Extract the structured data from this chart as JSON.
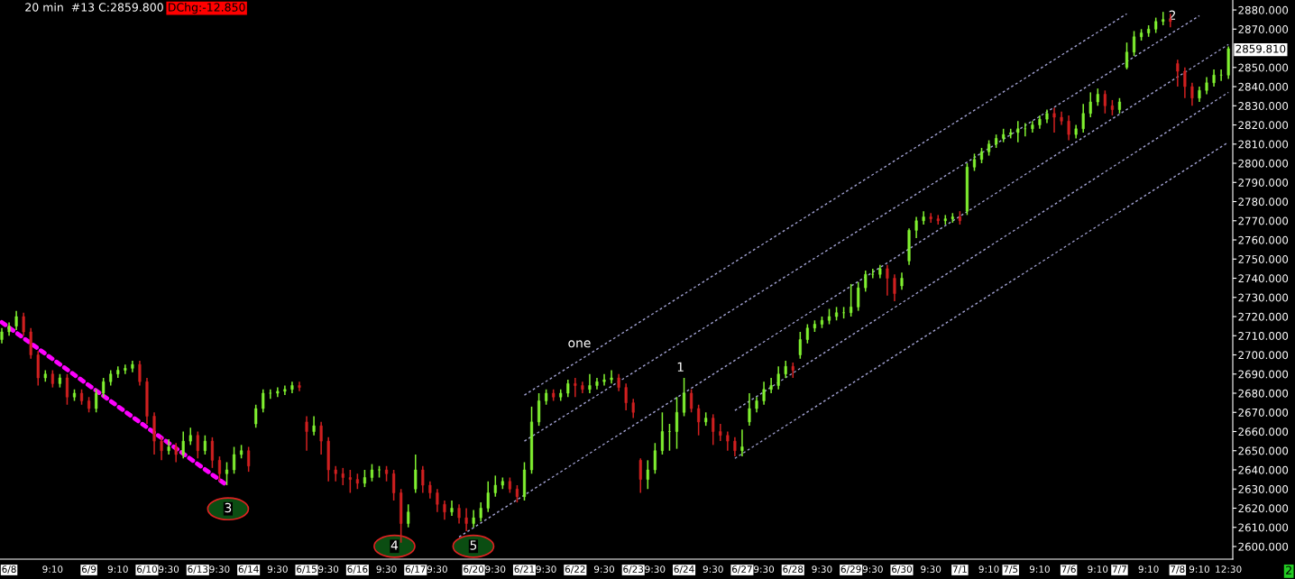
{
  "chart_data": {
    "type": "candlestick",
    "title": "20 min  #13 C:2859.800",
    "subtitle": "DChg:-12.850",
    "categories": [
      null,
      "6/8",
      null,
      null,
      null,
      null,
      null,
      "9:10",
      null,
      null,
      null,
      null,
      "6/9",
      null,
      null,
      null,
      "9:10",
      null,
      null,
      null,
      "6/10",
      null,
      null,
      "9:30",
      null,
      null,
      null,
      "6/13",
      null,
      null,
      "9:30",
      null,
      null,
      null,
      "6/14",
      null,
      null,
      null,
      "9:30",
      null,
      null,
      null,
      "6/15",
      null,
      null,
      "9:30",
      null,
      null,
      null,
      "6/16",
      null,
      null,
      null,
      "9:30",
      null,
      null,
      null,
      "6/17",
      null,
      null,
      "9:30",
      null,
      null,
      null,
      null,
      "6/20",
      null,
      null,
      "9:30",
      null,
      null,
      null,
      "6/21",
      null,
      null,
      "9:30",
      null,
      null,
      null,
      "6/22",
      null,
      null,
      null,
      "9:30",
      null,
      null,
      null,
      "6/23",
      null,
      null,
      "9:30",
      null,
      null,
      null,
      "6/24",
      null,
      null,
      null,
      "9:30",
      null,
      null,
      null,
      "6/27",
      null,
      null,
      "9:30",
      null,
      null,
      null,
      "6/28",
      null,
      null,
      null,
      "9:30",
      null,
      null,
      null,
      "6/29",
      null,
      null,
      "9:30",
      null,
      null,
      null,
      "6/30",
      null,
      null,
      null,
      "9:30",
      null,
      null,
      null,
      "7/1",
      null,
      null,
      null,
      "9:10",
      null,
      null,
      "7/5",
      null,
      null,
      null,
      "9:10",
      null,
      null,
      null,
      "7/6",
      null,
      null,
      null,
      "9:10",
      null,
      null,
      "7/7",
      null,
      null,
      null,
      "9:10",
      null,
      null,
      null,
      "7/8",
      null,
      null,
      "9:10",
      null,
      null,
      null,
      "12:30"
    ],
    "ohlc": [
      [
        2708,
        2714,
        2706,
        2712
      ],
      [
        2712,
        2717,
        2710,
        2715
      ],
      [
        2715,
        2723,
        2713,
        2720
      ],
      [
        2720,
        2722,
        2710,
        2712
      ],
      [
        2712,
        2714,
        2698,
        2700
      ],
      [
        2700,
        2702,
        2684,
        2688
      ],
      [
        2688,
        2692,
        2686,
        2690
      ],
      [
        2690,
        2692,
        2683,
        2685
      ],
      [
        2685,
        2690,
        2683,
        2688
      ],
      [
        2688,
        2690,
        2674,
        2678
      ],
      [
        2678,
        2682,
        2676,
        2680
      ],
      [
        2680,
        2682,
        2674,
        2676
      ],
      [
        2676,
        2678,
        2670,
        2672
      ],
      [
        2672,
        2682,
        2670,
        2680
      ],
      [
        2680,
        2688,
        2678,
        2686
      ],
      [
        2686,
        2692,
        2684,
        2690
      ],
      [
        2690,
        2694,
        2688,
        2692
      ],
      [
        2692,
        2695,
        2690,
        2693
      ],
      [
        2693,
        2697,
        2691,
        2695
      ],
      [
        2695,
        2697,
        2684,
        2686
      ],
      [
        2686,
        2688,
        2664,
        2668
      ],
      [
        2668,
        2670,
        2648,
        2655
      ],
      [
        2655,
        2657,
        2645,
        2650
      ],
      [
        2650,
        2656,
        2648,
        2652
      ],
      [
        2652,
        2654,
        2644,
        2648
      ],
      [
        2648,
        2660,
        2646,
        2655
      ],
      [
        2655,
        2662,
        2653,
        2658
      ],
      [
        2658,
        2660,
        2646,
        2650
      ],
      [
        2650,
        2658,
        2648,
        2655
      ],
      [
        2655,
        2657,
        2641,
        2645
      ],
      [
        2645,
        2647,
        2634,
        2638
      ],
      [
        2638,
        2644,
        2632,
        2640
      ],
      [
        2640,
        2652,
        2638,
        2648
      ],
      [
        2648,
        2653,
        2646,
        2650
      ],
      [
        2650,
        2652,
        2639,
        2642
      ],
      [
        2664,
        2674,
        2662,
        2672
      ],
      [
        2672,
        2682,
        2670,
        2680
      ],
      [
        2680,
        2682,
        2677,
        2680
      ],
      [
        2680,
        2683,
        2678,
        2681
      ],
      [
        2681,
        2684,
        2679,
        2682
      ],
      [
        2682,
        2686,
        2680,
        2684
      ],
      [
        2684,
        2686,
        2681,
        2683
      ],
      [
        2665,
        2668,
        2650,
        2660
      ],
      [
        2660,
        2668,
        2658,
        2663
      ],
      [
        2663,
        2665,
        2648,
        2655
      ],
      [
        2655,
        2657,
        2634,
        2640
      ],
      [
        2640,
        2642,
        2634,
        2638
      ],
      [
        2638,
        2641,
        2632,
        2636
      ],
      [
        2636,
        2640,
        2628,
        2635
      ],
      [
        2635,
        2638,
        2630,
        2633
      ],
      [
        2633,
        2640,
        2631,
        2636
      ],
      [
        2636,
        2643,
        2634,
        2640
      ],
      [
        2640,
        2642,
        2636,
        2640
      ],
      [
        2640,
        2642,
        2634,
        2638
      ],
      [
        2638,
        2640,
        2624,
        2628
      ],
      [
        2628,
        2630,
        2602,
        2612
      ],
      [
        2612,
        2622,
        2610,
        2618
      ],
      [
        2630,
        2648,
        2628,
        2640
      ],
      [
        2640,
        2642,
        2628,
        2632
      ],
      [
        2632,
        2634,
        2625,
        2628
      ],
      [
        2628,
        2630,
        2618,
        2622
      ],
      [
        2622,
        2624,
        2614,
        2618
      ],
      [
        2618,
        2624,
        2616,
        2620
      ],
      [
        2620,
        2622,
        2612,
        2615
      ],
      [
        2615,
        2620,
        2608,
        2612
      ],
      [
        2612,
        2619,
        2610,
        2615
      ],
      [
        2615,
        2623,
        2613,
        2620
      ],
      [
        2620,
        2634,
        2618,
        2628
      ],
      [
        2628,
        2637,
        2626,
        2632
      ],
      [
        2632,
        2636,
        2630,
        2634
      ],
      [
        2634,
        2636,
        2628,
        2630
      ],
      [
        2630,
        2632,
        2623,
        2626
      ],
      [
        2626,
        2644,
        2624,
        2640
      ],
      [
        2640,
        2673,
        2638,
        2665
      ],
      [
        2665,
        2680,
        2663,
        2676
      ],
      [
        2676,
        2682,
        2674,
        2680
      ],
      [
        2680,
        2682,
        2676,
        2678
      ],
      [
        2678,
        2682,
        2676,
        2680
      ],
      [
        2680,
        2687,
        2678,
        2685
      ],
      [
        2685,
        2688,
        2678,
        2684
      ],
      [
        2684,
        2686,
        2680,
        2682
      ],
      [
        2682,
        2690,
        2680,
        2684
      ],
      [
        2684,
        2688,
        2682,
        2686
      ],
      [
        2686,
        2690,
        2684,
        2687
      ],
      [
        2687,
        2692,
        2685,
        2688
      ],
      [
        2688,
        2690,
        2681,
        2683
      ],
      [
        2683,
        2685,
        2671,
        2675
      ],
      [
        2675,
        2677,
        2667,
        2670
      ],
      [
        2645,
        2646,
        2628,
        2635
      ],
      [
        2635,
        2645,
        2630,
        2640
      ],
      [
        2640,
        2654,
        2638,
        2650
      ],
      [
        2650,
        2670,
        2648,
        2660
      ],
      [
        2660,
        2664,
        2650,
        2660
      ],
      [
        2660,
        2678,
        2651,
        2670
      ],
      [
        2670,
        2688,
        2668,
        2680
      ],
      [
        2680,
        2682,
        2670,
        2672
      ],
      [
        2672,
        2674,
        2658,
        2665
      ],
      [
        2665,
        2670,
        2663,
        2667
      ],
      [
        2667,
        2669,
        2653,
        2660
      ],
      [
        2660,
        2664,
        2655,
        2658
      ],
      [
        2658,
        2660,
        2650,
        2655
      ],
      [
        2655,
        2657,
        2647,
        2650
      ],
      [
        2650,
        2661,
        2647,
        2652
      ],
      [
        2665,
        2680,
        2663,
        2672
      ],
      [
        2672,
        2678,
        2670,
        2676
      ],
      [
        2676,
        2686,
        2674,
        2682
      ],
      [
        2682,
        2688,
        2680,
        2684
      ],
      [
        2684,
        2694,
        2682,
        2690
      ],
      [
        2690,
        2697,
        2688,
        2694
      ],
      [
        2694,
        2696,
        2688,
        2692
      ],
      [
        2700,
        2712,
        2698,
        2708
      ],
      [
        2708,
        2716,
        2706,
        2714
      ],
      [
        2714,
        2718,
        2712,
        2716
      ],
      [
        2716,
        2720,
        2714,
        2718
      ],
      [
        2718,
        2724,
        2716,
        2720
      ],
      [
        2720,
        2725,
        2718,
        2722
      ],
      [
        2722,
        2725,
        2719,
        2722
      ],
      [
        2722,
        2737,
        2720,
        2725
      ],
      [
        2725,
        2738,
        2723,
        2735
      ],
      [
        2735,
        2744,
        2733,
        2742
      ],
      [
        2742,
        2745,
        2740,
        2742
      ],
      [
        2742,
        2747,
        2740,
        2745
      ],
      [
        2745,
        2747,
        2731,
        2740
      ],
      [
        2740,
        2742,
        2728,
        2732
      ],
      [
        2736,
        2743,
        2734,
        2740
      ],
      [
        2749,
        2766,
        2747,
        2765
      ],
      [
        2765,
        2772,
        2761,
        2770
      ],
      [
        2770,
        2775,
        2768,
        2772
      ],
      [
        2772,
        2774,
        2769,
        2771
      ],
      [
        2771,
        2773,
        2768,
        2770
      ],
      [
        2770,
        2773,
        2768,
        2771
      ],
      [
        2771,
        2774,
        2769,
        2772
      ],
      [
        2772,
        2775,
        2768,
        2770
      ],
      [
        2775,
        2800,
        2773,
        2798
      ],
      [
        2798,
        2805,
        2796,
        2802
      ],
      [
        2802,
        2808,
        2800,
        2806
      ],
      [
        2806,
        2812,
        2804,
        2810
      ],
      [
        2810,
        2815,
        2808,
        2813
      ],
      [
        2813,
        2818,
        2811,
        2815
      ],
      [
        2815,
        2818,
        2813,
        2816
      ],
      [
        2816,
        2822,
        2811,
        2818
      ],
      [
        2818,
        2821,
        2814,
        2818
      ],
      [
        2818,
        2822,
        2816,
        2820
      ],
      [
        2820,
        2825,
        2818,
        2823
      ],
      [
        2823,
        2828,
        2821,
        2826
      ],
      [
        2826,
        2829,
        2816,
        2824
      ],
      [
        2824,
        2827,
        2820,
        2822
      ],
      [
        2822,
        2825,
        2812,
        2815
      ],
      [
        2815,
        2820,
        2813,
        2818
      ],
      [
        2818,
        2831,
        2816,
        2826
      ],
      [
        2826,
        2837,
        2824,
        2832
      ],
      [
        2832,
        2839,
        2830,
        2836
      ],
      [
        2836,
        2838,
        2826,
        2830
      ],
      [
        2830,
        2833,
        2825,
        2828
      ],
      [
        2828,
        2834,
        2826,
        2832
      ],
      [
        2850,
        2863,
        2849,
        2858
      ],
      [
        2858,
        2869,
        2856,
        2866
      ],
      [
        2866,
        2870,
        2864,
        2868
      ],
      [
        2868,
        2872,
        2866,
        2870
      ],
      [
        2870,
        2876,
        2868,
        2874
      ],
      [
        2874,
        2879,
        2872,
        2875
      ],
      [
        2875,
        2878,
        2871,
        2874
      ],
      [
        2852,
        2854,
        2840,
        2848
      ],
      [
        2848,
        2850,
        2834,
        2840
      ],
      [
        2840,
        2842,
        2830,
        2834
      ],
      [
        2834,
        2840,
        2832,
        2838
      ],
      [
        2838,
        2845,
        2836,
        2842
      ],
      [
        2842,
        2849,
        2840,
        2846
      ],
      [
        2846,
        2849,
        2843,
        2846
      ],
      [
        2846,
        2861,
        2844,
        2859.8
      ]
    ],
    "colors": [
      "#80f030",
      "#80f030",
      "#80f030",
      "#d02020",
      "#d02020",
      "#d02020",
      "#80f030",
      "#d02020",
      "#80f030",
      "#d02020",
      "#80f030",
      "#d02020",
      "#d02020",
      "#80f030",
      "#80f030",
      "#80f030",
      "#80f030",
      "#80f030",
      "#80f030",
      "#d02020",
      "#d02020",
      "#d02020",
      "#d02020",
      "#80f030",
      "#d02020",
      "#80f030",
      "#80f030",
      "#d02020",
      "#80f030",
      "#d02020",
      "#d02020",
      "#80f030",
      "#80f030",
      "#80f030",
      "#d02020",
      "#80f030",
      "#80f030",
      "#80f030",
      "#80f030",
      "#80f030",
      "#80f030",
      "#d02020",
      "#d02020",
      "#80f030",
      "#d02020",
      "#d02020",
      "#d02020",
      "#d02020",
      "#d02020",
      "#d02020",
      "#80f030",
      "#80f030",
      "#80f030",
      "#d02020",
      "#d02020",
      "#d02020",
      "#80f030",
      "#80f030",
      "#d02020",
      "#d02020",
      "#d02020",
      "#d02020",
      "#80f030",
      "#d02020",
      "#d02020",
      "#80f030",
      "#80f030",
      "#80f030",
      "#80f030",
      "#80f030",
      "#d02020",
      "#d02020",
      "#80f030",
      "#80f030",
      "#80f030",
      "#80f030",
      "#d02020",
      "#80f030",
      "#80f030",
      "#d02020",
      "#d02020",
      "#80f030",
      "#80f030",
      "#80f030",
      "#80f030",
      "#d02020",
      "#d02020",
      "#d02020",
      "#d02020",
      "#80f030",
      "#80f030",
      "#80f030",
      "#80f030",
      "#80f030",
      "#80f030",
      "#d02020",
      "#d02020",
      "#80f030",
      "#d02020",
      "#d02020",
      "#d02020",
      "#d02020",
      "#80f030",
      "#80f030",
      "#80f030",
      "#80f030",
      "#80f030",
      "#80f030",
      "#80f030",
      "#d02020",
      "#80f030",
      "#80f030",
      "#80f030",
      "#80f030",
      "#80f030",
      "#80f030",
      "#80f030",
      "#80f030",
      "#80f030",
      "#80f030",
      "#80f030",
      "#80f030",
      "#d02020",
      "#d02020",
      "#80f030",
      "#80f030",
      "#80f030",
      "#80f030",
      "#d02020",
      "#d02020",
      "#80f030",
      "#80f030",
      "#d02020",
      "#80f030",
      "#80f030",
      "#80f030",
      "#80f030",
      "#80f030",
      "#80f030",
      "#80f030",
      "#80f030",
      "#80f030",
      "#80f030",
      "#80f030",
      "#80f030",
      "#d02020",
      "#d02020",
      "#d02020",
      "#80f030",
      "#80f030",
      "#80f030",
      "#80f030",
      "#d02020",
      "#d02020",
      "#80f030",
      "#80f030",
      "#80f030",
      "#80f030",
      "#80f030",
      "#80f030",
      "#80f030",
      "#d02020",
      "#d02020",
      "#d02020",
      "#d02020",
      "#80f030",
      "#80f030",
      "#80f030",
      "#80f030",
      "#80f030"
    ],
    "series": [
      {
        "type": "line",
        "color": "#ff00ff",
        "line_style": "dotted",
        "values": [
          2717,
          null,
          null,
          null,
          null,
          null,
          null,
          null,
          null,
          null,
          null,
          null,
          null,
          null,
          null,
          null,
          null,
          null,
          null,
          null,
          null,
          null,
          null,
          null,
          null,
          null,
          null,
          null,
          null,
          null,
          null,
          2632,
          null,
          null,
          null,
          null,
          null,
          null,
          null,
          null,
          null,
          null,
          null,
          null,
          null,
          null,
          null,
          null,
          null,
          null,
          null,
          null,
          null,
          null,
          null,
          null,
          null,
          null,
          null,
          null,
          null,
          null,
          null,
          null,
          null,
          null,
          null,
          null,
          null,
          null,
          null,
          null,
          null,
          null,
          null,
          null,
          null,
          null,
          null,
          null,
          null,
          null,
          null,
          null,
          null,
          null,
          null,
          null,
          null,
          null,
          null,
          null,
          null,
          null,
          null,
          null,
          null,
          null,
          null,
          null,
          null,
          null,
          null,
          null,
          null,
          null,
          null,
          null,
          null,
          null,
          null,
          null,
          null,
          null,
          null,
          null,
          null,
          null,
          null,
          null,
          null,
          null,
          null,
          null,
          null,
          null,
          null,
          null,
          null,
          null,
          null,
          null,
          null,
          null,
          null,
          null,
          null,
          null,
          null,
          null,
          null,
          null,
          null,
          null,
          null,
          null,
          null,
          null,
          null,
          null,
          null,
          null,
          null,
          null,
          null,
          null,
          null,
          null,
          null,
          null,
          null,
          null,
          null,
          null,
          null,
          null,
          null,
          null,
          null,
          null
        ]
      },
      {
        "type": "line",
        "color": "#a0a0d0",
        "line_style": "dashed",
        "values": [
          null,
          null,
          null,
          null,
          null,
          null,
          null,
          null,
          null,
          null,
          null,
          null,
          null,
          null,
          null,
          null,
          null,
          null,
          null,
          null,
          null,
          null,
          null,
          null,
          null,
          null,
          null,
          null,
          null,
          null,
          null,
          null,
          null,
          null,
          null,
          null,
          null,
          null,
          null,
          null,
          null,
          null,
          null,
          null,
          null,
          null,
          null,
          null,
          null,
          null,
          null,
          null,
          null,
          null,
          null,
          null,
          null,
          null,
          null,
          null,
          null,
          null,
          null,
          null,
          null,
          null,
          null,
          null,
          null,
          null,
          null,
          null,
          2679,
          null,
          null,
          null,
          null,
          null,
          null,
          null,
          null,
          null,
          null,
          null,
          null,
          null,
          null,
          null,
          null,
          null,
          null,
          null,
          null,
          null,
          null,
          null,
          null,
          null,
          null,
          null,
          null,
          null,
          null,
          null,
          null,
          null,
          null,
          null,
          null,
          null,
          null,
          null,
          null,
          null,
          null,
          null,
          null,
          null,
          null,
          null,
          null,
          null,
          null,
          null,
          null,
          null,
          null,
          null,
          null,
          null,
          null,
          null,
          null,
          null,
          null,
          null,
          null,
          null,
          null,
          null,
          null,
          null,
          null,
          null,
          null,
          null,
          null,
          null,
          null,
          null,
          null,
          null,
          null,
          null,
          null,
          2878,
          null,
          null,
          null,
          null,
          null,
          null,
          null,
          null,
          null,
          null,
          null,
          null,
          null,
          null
        ]
      },
      {
        "type": "line",
        "color": "#a0a0d0",
        "line_style": "dashed",
        "values": [
          null,
          null,
          null,
          null,
          null,
          null,
          null,
          null,
          null,
          null,
          null,
          null,
          null,
          null,
          null,
          null,
          null,
          null,
          null,
          null,
          null,
          null,
          null,
          null,
          null,
          null,
          null,
          null,
          null,
          null,
          null,
          null,
          null,
          null,
          null,
          null,
          null,
          null,
          null,
          null,
          null,
          null,
          null,
          null,
          null,
          null,
          null,
          null,
          null,
          null,
          null,
          null,
          null,
          null,
          null,
          null,
          null,
          null,
          null,
          null,
          null,
          null,
          null,
          null,
          null,
          null,
          null,
          null,
          null,
          null,
          null,
          null,
          2655,
          null,
          null,
          null,
          null,
          null,
          null,
          null,
          null,
          null,
          null,
          null,
          null,
          null,
          null,
          null,
          null,
          null,
          null,
          null,
          null,
          null,
          null,
          null,
          null,
          null,
          null,
          null,
          null,
          null,
          null,
          null,
          null,
          null,
          null,
          null,
          null,
          null,
          null,
          null,
          null,
          null,
          null,
          null,
          null,
          null,
          null,
          null,
          null,
          null,
          null,
          null,
          null,
          null,
          null,
          null,
          null,
          null,
          null,
          null,
          null,
          null,
          null,
          null,
          null,
          null,
          null,
          null,
          null,
          null,
          null,
          null,
          null,
          null,
          null,
          null,
          null,
          null,
          null,
          null,
          null,
          null,
          null,
          null,
          null,
          null,
          null,
          null,
          null,
          null,
          null,
          null,
          null,
          2877,
          null,
          null,
          null,
          null
        ]
      },
      {
        "type": "line",
        "color": "#a0a0d0",
        "line_style": "dashed",
        "values": [
          null,
          null,
          null,
          null,
          null,
          null,
          null,
          null,
          null,
          null,
          null,
          null,
          null,
          null,
          null,
          null,
          null,
          null,
          null,
          null,
          null,
          null,
          null,
          null,
          null,
          null,
          null,
          null,
          null,
          null,
          null,
          null,
          null,
          null,
          null,
          null,
          null,
          null,
          null,
          null,
          null,
          null,
          null,
          null,
          null,
          null,
          null,
          null,
          null,
          null,
          null,
          null,
          null,
          null,
          null,
          null,
          null,
          null,
          null,
          null,
          null,
          null,
          null,
          2605,
          null,
          null,
          null,
          null,
          null,
          null,
          null,
          null,
          null,
          null,
          null,
          null,
          null,
          null,
          null,
          null,
          null,
          null,
          null,
          null,
          null,
          null,
          null,
          null,
          null,
          null,
          null,
          null,
          null,
          null,
          null,
          null,
          null,
          null,
          null,
          null,
          null,
          null,
          null,
          null,
          null,
          null,
          null,
          null,
          null,
          null,
          null,
          null,
          null,
          null,
          null,
          null,
          null,
          null,
          null,
          null,
          null,
          null,
          null,
          null,
          null,
          null,
          null,
          null,
          null,
          null,
          null,
          null,
          null,
          null,
          null,
          null,
          null,
          null,
          null,
          null,
          null,
          null,
          null,
          null,
          null,
          null,
          null,
          null,
          null,
          null,
          null,
          null,
          null,
          null,
          null,
          null,
          null,
          null,
          null,
          null,
          null,
          null,
          null,
          null,
          null,
          null,
          null,
          null,
          null,
          2862
        ]
      },
      {
        "type": "line",
        "color": "#a0a0d0",
        "line_style": "dashed",
        "values": [
          null,
          null,
          null,
          null,
          null,
          null,
          null,
          null,
          null,
          null,
          null,
          null,
          null,
          null,
          null,
          null,
          null,
          null,
          null,
          null,
          null,
          null,
          null,
          null,
          null,
          null,
          null,
          null,
          null,
          null,
          null,
          null,
          null,
          null,
          null,
          null,
          null,
          null,
          null,
          null,
          null,
          null,
          null,
          null,
          null,
          null,
          null,
          null,
          null,
          null,
          null,
          null,
          null,
          null,
          null,
          null,
          null,
          null,
          null,
          null,
          null,
          null,
          null,
          null,
          null,
          null,
          null,
          null,
          null,
          null,
          null,
          null,
          null,
          null,
          null,
          null,
          null,
          null,
          null,
          null,
          null,
          null,
          null,
          null,
          null,
          null,
          null,
          null,
          null,
          null,
          null,
          null,
          null,
          null,
          null,
          null,
          null,
          null,
          null,
          null,
          null,
          2671,
          null,
          null,
          null,
          null,
          null,
          null,
          null,
          null,
          null,
          null,
          null,
          null,
          null,
          null,
          null,
          null,
          null,
          null,
          null,
          null,
          null,
          null,
          null,
          null,
          null,
          null,
          null,
          null,
          null,
          null,
          null,
          null,
          null,
          null,
          null,
          null,
          null,
          null,
          null,
          null,
          null,
          null,
          null,
          null,
          null,
          null,
          null,
          null,
          null,
          null,
          null,
          null,
          null,
          null,
          null,
          null,
          null,
          null,
          null,
          null,
          null,
          null,
          null,
          null,
          null,
          null,
          null,
          2837
        ]
      },
      {
        "type": "line",
        "color": "#a0a0d0",
        "line_style": "dashed",
        "values": [
          null,
          null,
          null,
          null,
          null,
          null,
          null,
          null,
          null,
          null,
          null,
          null,
          null,
          null,
          null,
          null,
          null,
          null,
          null,
          null,
          null,
          null,
          null,
          null,
          null,
          null,
          null,
          null,
          null,
          null,
          null,
          null,
          null,
          null,
          null,
          null,
          null,
          null,
          null,
          null,
          null,
          null,
          null,
          null,
          null,
          null,
          null,
          null,
          null,
          null,
          null,
          null,
          null,
          null,
          null,
          null,
          null,
          null,
          null,
          null,
          null,
          null,
          null,
          null,
          null,
          null,
          null,
          null,
          null,
          null,
          null,
          null,
          null,
          null,
          null,
          null,
          null,
          null,
          null,
          null,
          null,
          null,
          null,
          null,
          null,
          null,
          null,
          null,
          null,
          null,
          null,
          null,
          null,
          null,
          null,
          null,
          null,
          null,
          null,
          null,
          null,
          2646,
          null,
          null,
          null,
          null,
          null,
          null,
          null,
          null,
          null,
          null,
          null,
          null,
          null,
          null,
          null,
          null,
          null,
          null,
          null,
          null,
          null,
          null,
          null,
          null,
          null,
          null,
          null,
          null,
          null,
          null,
          null,
          null,
          null,
          null,
          null,
          null,
          null,
          null,
          null,
          null,
          null,
          null,
          null,
          null,
          null,
          null,
          null,
          null,
          null,
          null,
          null,
          null,
          null,
          null,
          null,
          null,
          null,
          null,
          null,
          null,
          null,
          null,
          null,
          null,
          null,
          null,
          null,
          2811
        ]
      }
    ],
    "annotations": [
      "3",
      "4",
      "5",
      "one",
      "1",
      "2",
      "2859.810",
      "2"
    ],
    "ylim": [
      2593.4,
      2885.2
    ],
    "yticks": [
      {
        "value": 2600,
        "label": "2600.000"
      },
      {
        "value": 2610,
        "label": "2610.000"
      },
      {
        "value": 2620,
        "label": "2620.000"
      },
      {
        "value": 2630,
        "label": "2630.000"
      },
      {
        "value": 2640,
        "label": "2640.000"
      },
      {
        "value": 2650,
        "label": "2650.000"
      },
      {
        "value": 2660,
        "label": "2660.000"
      },
      {
        "value": 2670,
        "label": "2670.000"
      },
      {
        "value": 2680,
        "label": "2680.000"
      },
      {
        "value": 2690,
        "label": "2690.000"
      },
      {
        "value": 2700,
        "label": "2700.000"
      },
      {
        "value": 2710,
        "label": "2710.000"
      },
      {
        "value": 2720,
        "label": "2720.000"
      },
      {
        "value": 2730,
        "label": "2730.000"
      },
      {
        "value": 2740,
        "label": "2740.000"
      },
      {
        "value": 2750,
        "label": "2750.000"
      },
      {
        "value": 2760,
        "label": "2760.000"
      },
      {
        "value": 2770,
        "label": "2770.000"
      },
      {
        "value": 2780,
        "label": "2780.000"
      },
      {
        "value": 2790,
        "label": "2790.000"
      },
      {
        "value": 2800,
        "label": "2800.000"
      },
      {
        "value": 2810,
        "label": "2810.000"
      },
      {
        "value": 2820,
        "label": "2820.000"
      },
      {
        "value": 2830,
        "label": "2830.000"
      },
      {
        "value": 2840,
        "label": "2840.000"
      },
      {
        "value": 2850,
        "label": "2850.000"
      },
      {
        "value": 2870,
        "label": "2870.000"
      },
      {
        "value": 2880,
        "label": "2880.000"
      }
    ],
    "grid": false,
    "legend": false
  }
}
